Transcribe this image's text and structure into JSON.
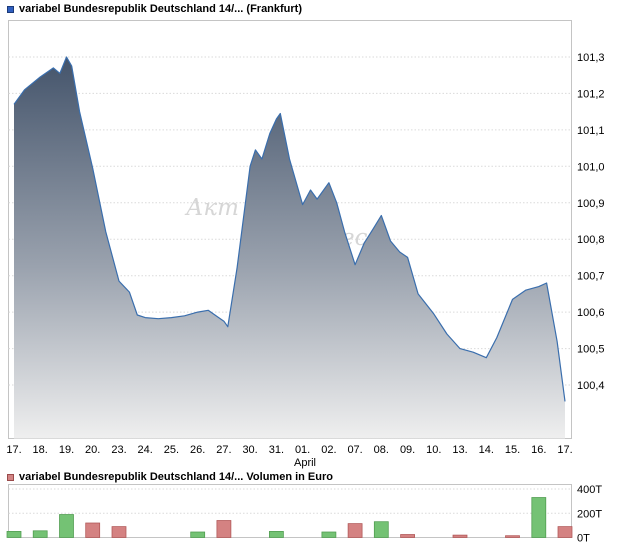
{
  "header": {
    "title": "variabel Bundesrepublik Deutschland 14/... (Frankfurt)",
    "marker_color": "#2f5fc0",
    "marker_border": "#1b3a78"
  },
  "volume_header": {
    "title": "variabel Bundesrepublik Deutschland 14/... Volumen in Euro",
    "marker_color": "#d28484",
    "marker_border": "#9a4b4b"
  },
  "watermark": {
    "part1": "Акт",
    "part2": "ес"
  },
  "chart_data": [
    {
      "type": "area",
      "title": "variabel Bundesrepublik Deutschland 14/... (Frankfurt)",
      "x_labels": [
        "17.",
        "18.",
        "19.",
        "20.",
        "23.",
        "24.",
        "25.",
        "26.",
        "27.",
        "30.",
        "31.",
        "01.",
        "02.",
        "07.",
        "08.",
        "09.",
        "10.",
        "13.",
        "14.",
        "15.",
        "16.",
        "17."
      ],
      "x_axis_label": "April",
      "ylim": [
        100.3,
        101.35
      ],
      "y_ticks": [
        101.3,
        101.2,
        101.1,
        101.0,
        100.9,
        100.8,
        100.7,
        100.6,
        100.5,
        100.4
      ],
      "y_tick_labels": [
        "101,3",
        "101,2",
        "101,1",
        "101,0",
        "100,9",
        "100,8",
        "100,7",
        "100,6",
        "100,5",
        "100,4"
      ],
      "line_color": "#3a6ead",
      "fill_top": "#44546b",
      "fill_mid": "#9aa2ae",
      "fill_bottom": "#efefef",
      "grid": true,
      "points": [
        [
          0,
          101.17
        ],
        [
          0.4,
          101.21
        ],
        [
          1,
          101.245
        ],
        [
          1.5,
          101.27
        ],
        [
          1.75,
          101.255
        ],
        [
          2,
          101.3
        ],
        [
          2.2,
          101.275
        ],
        [
          2.5,
          101.15
        ],
        [
          3,
          100.995
        ],
        [
          3.5,
          100.82
        ],
        [
          4,
          100.685
        ],
        [
          4.4,
          100.655
        ],
        [
          4.7,
          100.592
        ],
        [
          5,
          100.585
        ],
        [
          5.5,
          100.582
        ],
        [
          6,
          100.585
        ],
        [
          6.5,
          100.59
        ],
        [
          7,
          100.6
        ],
        [
          7.4,
          100.605
        ],
        [
          7.7,
          100.59
        ],
        [
          8,
          100.575
        ],
        [
          8.15,
          100.56
        ],
        [
          8.5,
          100.72
        ],
        [
          9,
          101.0
        ],
        [
          9.2,
          101.045
        ],
        [
          9.45,
          101.02
        ],
        [
          9.75,
          101.09
        ],
        [
          10,
          101.13
        ],
        [
          10.15,
          101.145
        ],
        [
          10.5,
          101.02
        ],
        [
          11,
          100.895
        ],
        [
          11.3,
          100.935
        ],
        [
          11.55,
          100.91
        ],
        [
          12,
          100.955
        ],
        [
          12.3,
          100.9
        ],
        [
          12.6,
          100.82
        ],
        [
          13,
          100.73
        ],
        [
          13.35,
          100.79
        ],
        [
          13.7,
          100.83
        ],
        [
          14,
          100.865
        ],
        [
          14.35,
          100.795
        ],
        [
          14.7,
          100.765
        ],
        [
          15,
          100.75
        ],
        [
          15.4,
          100.65
        ],
        [
          16,
          100.595
        ],
        [
          16.5,
          100.54
        ],
        [
          17,
          100.5
        ],
        [
          17.5,
          100.49
        ],
        [
          18,
          100.475
        ],
        [
          18.4,
          100.53
        ],
        [
          19,
          100.635
        ],
        [
          19.5,
          100.66
        ],
        [
          20,
          100.67
        ],
        [
          20.3,
          100.68
        ],
        [
          20.7,
          100.52
        ],
        [
          21,
          100.355
        ]
      ]
    },
    {
      "type": "bar",
      "title": "variabel Bundesrepublik Deutschland 14/... Volumen in Euro",
      "categories": [
        "17.",
        "18.",
        "19.",
        "20.",
        "23.",
        "24.",
        "25.",
        "26.",
        "27.",
        "30.",
        "31.",
        "01.",
        "02.",
        "07.",
        "08.",
        "09.",
        "10.",
        "13.",
        "14.",
        "15.",
        "16.",
        "17."
      ],
      "values": [
        50,
        55,
        190,
        120,
        90,
        0,
        0,
        45,
        140,
        0,
        50,
        0,
        45,
        115,
        130,
        25,
        0,
        20,
        0,
        15,
        330,
        90
      ],
      "bar_colors": [
        "green",
        "green",
        "green",
        "red",
        "red",
        "none",
        "none",
        "green",
        "red",
        "none",
        "green",
        "none",
        "green",
        "red",
        "green",
        "red",
        "none",
        "red",
        "none",
        "red",
        "green",
        "red"
      ],
      "ylim": [
        0,
        400
      ],
      "y_tick_values": [
        400,
        200,
        0
      ],
      "y_ticks": [
        "400T",
        "200T",
        "0T"
      ],
      "green": {
        "fill": "#74c274",
        "stroke": "#4f9b4f"
      },
      "red": {
        "fill": "#d48282",
        "stroke": "#b05656"
      }
    }
  ]
}
